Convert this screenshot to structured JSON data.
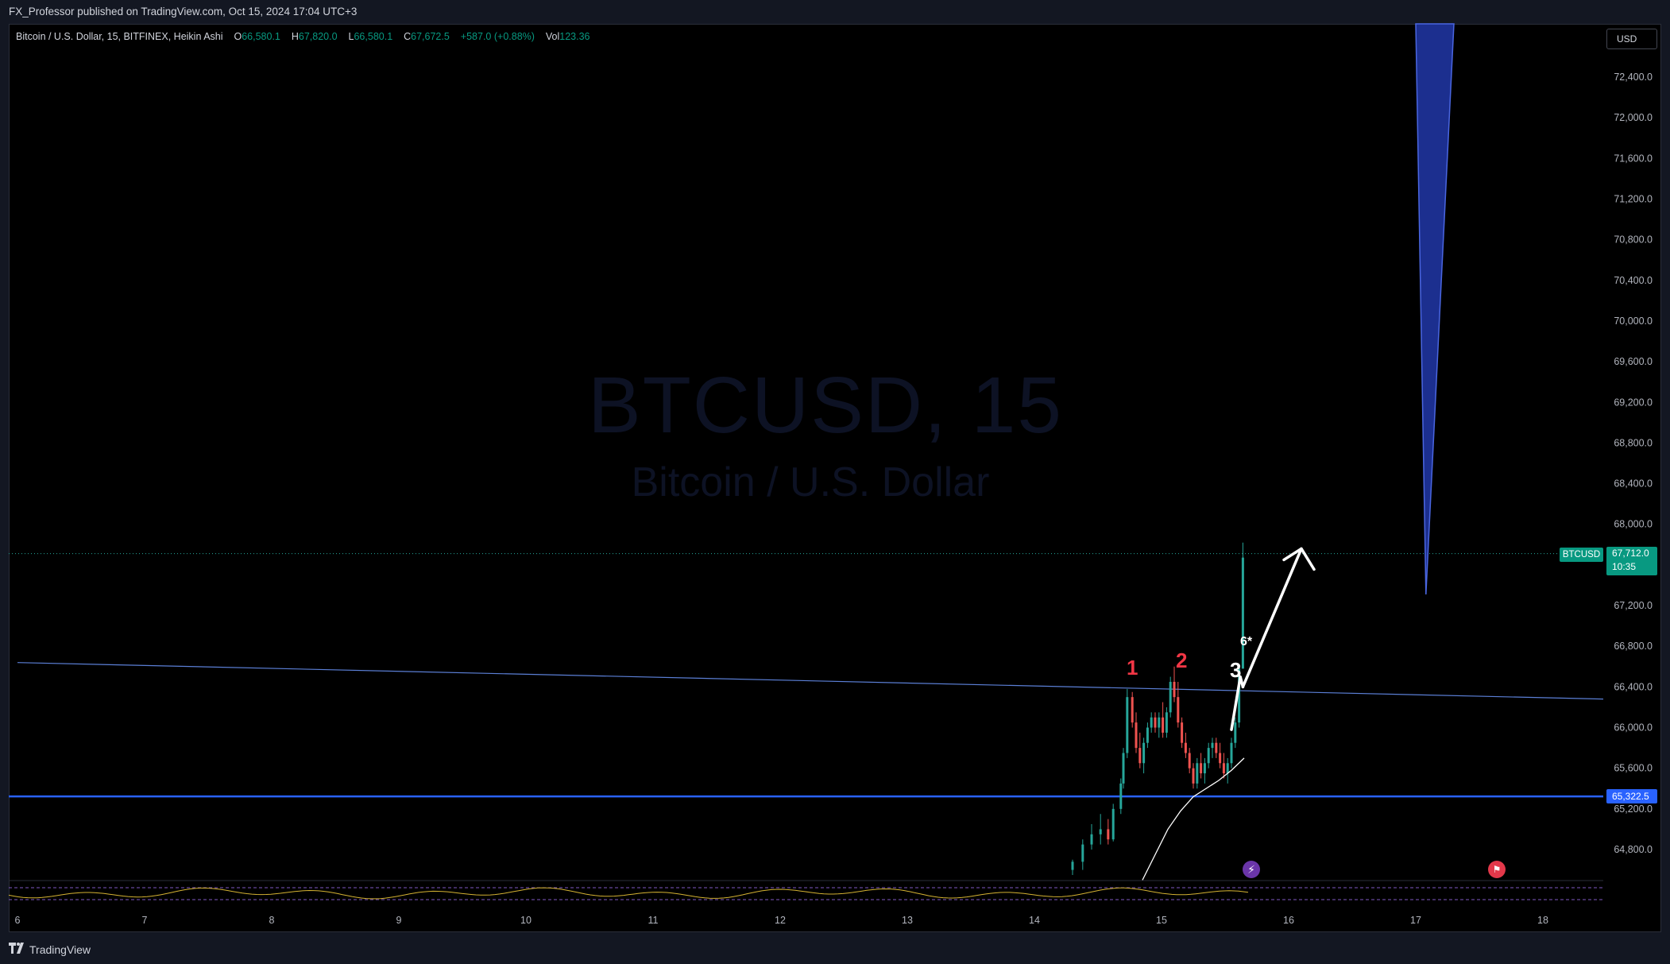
{
  "header": {
    "publish_line": "FX_Professor published on TradingView.com, Oct 15, 2024 17:04 UTC+3"
  },
  "legend": {
    "symbol": "Bitcoin / U.S. Dollar, 15, BITFINEX, Heikin Ashi",
    "open_k": "O",
    "open": "66,580.1",
    "high_k": "H",
    "high": "67,820.0",
    "low_k": "L",
    "low": "66,580.1",
    "close_k": "C",
    "close": "67,672.5",
    "change": "+587.0 (+0.88%)",
    "vol_k": "Vol",
    "vol": "123.36"
  },
  "currency_button": "USD",
  "watermark": {
    "title": "BTCUSD, 15",
    "subtitle": "Bitcoin / U.S. Dollar"
  },
  "price_tags": {
    "ticker": "BTCUSD",
    "last_price": "67,712.0",
    "countdown": "10:35",
    "level": "65,322.5"
  },
  "wave_labels": {
    "one": "1",
    "two": "2",
    "three": "3",
    "six": "6*"
  },
  "colors": {
    "up": "#26a69a",
    "down": "#ef5350",
    "level_line": "#2962ff",
    "trend_line": "#5b7fd6",
    "arrow": "#ffffff",
    "projection": "#1c2f8f"
  },
  "icons": {
    "event_a": "lightning-icon",
    "event_b": "us-flag-icon"
  },
  "footer": {
    "brand": "TradingView"
  },
  "chart_data": {
    "type": "candlestick",
    "chart_style": "Heikin Ashi",
    "symbol": "BTCUSD",
    "interval": "15",
    "exchange": "BITFINEX",
    "y_axis": {
      "ticks": [
        "64,800.0",
        "65,200.0",
        "65,600.0",
        "66,000.0",
        "66,400.0",
        "66,800.0",
        "67,200.0",
        "67,600.0",
        "68,000.0",
        "68,400.0",
        "68,800.0",
        "69,200.0",
        "69,600.0",
        "70,000.0",
        "70,400.0",
        "70,800.0",
        "71,200.0",
        "71,600.0",
        "72,000.0",
        "72,400.0"
      ],
      "range": [
        64550,
        72950
      ]
    },
    "x_axis": {
      "ticks": [
        "6",
        "7",
        "8",
        "9",
        "10",
        "11",
        "12",
        "13",
        "14",
        "15",
        "16",
        "17",
        "18"
      ],
      "range": [
        6,
        18.5
      ]
    },
    "last_price": 67712.0,
    "horizontal_level": 65322.5,
    "trend_line": {
      "from": [
        6,
        66640
      ],
      "to": [
        18.5,
        66280
      ]
    },
    "candles": [
      [
        14.3,
        64600,
        64700,
        64550,
        64680
      ],
      [
        14.38,
        64680,
        64900,
        64600,
        64850
      ],
      [
        14.45,
        64850,
        65050,
        64800,
        64950
      ],
      [
        14.52,
        64950,
        65150,
        64850,
        65000
      ],
      [
        14.58,
        65000,
        65100,
        64850,
        64900
      ],
      [
        14.62,
        64900,
        65250,
        64880,
        65200
      ],
      [
        14.68,
        65200,
        65500,
        65150,
        65450
      ],
      [
        14.7,
        65450,
        65800,
        65400,
        65750
      ],
      [
        14.73,
        65750,
        66380,
        65700,
        66300
      ],
      [
        14.77,
        66300,
        66350,
        66000,
        66050
      ],
      [
        14.8,
        66050,
        66150,
        65750,
        65800
      ],
      [
        14.83,
        65800,
        65950,
        65600,
        65650
      ],
      [
        14.86,
        65650,
        65900,
        65550,
        65850
      ],
      [
        14.89,
        65850,
        66050,
        65800,
        66000
      ],
      [
        14.92,
        66000,
        66150,
        65950,
        66100
      ],
      [
        14.95,
        66100,
        66150,
        65950,
        66000
      ],
      [
        14.98,
        66000,
        66150,
        65900,
        66100
      ],
      [
        15.01,
        66100,
        66250,
        65900,
        65950
      ],
      [
        15.04,
        65950,
        66200,
        65900,
        66150
      ],
      [
        15.07,
        66150,
        66500,
        66100,
        66450
      ],
      [
        15.1,
        66450,
        66600,
        66250,
        66300
      ],
      [
        15.13,
        66300,
        66450,
        66000,
        66050
      ],
      [
        15.16,
        66050,
        66100,
        65800,
        65850
      ],
      [
        15.19,
        65850,
        65950,
        65700,
        65750
      ],
      [
        15.22,
        65750,
        65800,
        65550,
        65600
      ],
      [
        15.25,
        65600,
        65650,
        65400,
        65450
      ],
      [
        15.28,
        65450,
        65700,
        65400,
        65650
      ],
      [
        15.31,
        65650,
        65750,
        65500,
        65550
      ],
      [
        15.34,
        65550,
        65700,
        65450,
        65650
      ],
      [
        15.37,
        65650,
        65850,
        65600,
        65800
      ],
      [
        15.4,
        65800,
        65900,
        65700,
        65850
      ],
      [
        15.43,
        65850,
        65900,
        65700,
        65750
      ],
      [
        15.46,
        65750,
        65850,
        65600,
        65650
      ],
      [
        15.49,
        65650,
        65750,
        65500,
        65550
      ],
      [
        15.52,
        65550,
        65700,
        65450,
        65650
      ],
      [
        15.55,
        65650,
        65900,
        65600,
        65850
      ],
      [
        15.58,
        65850,
        66100,
        65800,
        66050
      ],
      [
        15.61,
        66050,
        66600,
        66000,
        66580
      ],
      [
        15.64,
        66580,
        67820,
        66580,
        67672.5
      ]
    ],
    "moving_average": [
      [
        14.85,
        64500
      ],
      [
        14.95,
        64750
      ],
      [
        15.05,
        65000
      ],
      [
        15.15,
        65180
      ],
      [
        15.25,
        65320
      ],
      [
        15.35,
        65400
      ],
      [
        15.45,
        65480
      ],
      [
        15.55,
        65580
      ],
      [
        15.65,
        65700
      ]
    ],
    "projection_arrow": {
      "from": [
        15.64,
        66400
      ],
      "to": [
        16.1,
        67760
      ]
    },
    "projection_wedge": {
      "top_left": [
        17.0,
        73000
      ],
      "top_right": [
        17.3,
        73000
      ],
      "tip": [
        17.08,
        67310
      ]
    },
    "wave_points": [
      {
        "label": "1",
        "x": 14.73,
        "y": 66480
      },
      {
        "label": "2",
        "x": 15.1,
        "y": 66530
      },
      {
        "label": "3",
        "x": 15.58,
        "y": 66380
      },
      {
        "label": "6*",
        "x": 15.64,
        "y": 66860
      }
    ],
    "oscillator": {
      "type": "line",
      "panel": "bottom",
      "range": [
        0,
        100
      ],
      "bands": [
        30,
        70
      ]
    },
    "grid": false,
    "legend_position": "top-left"
  }
}
